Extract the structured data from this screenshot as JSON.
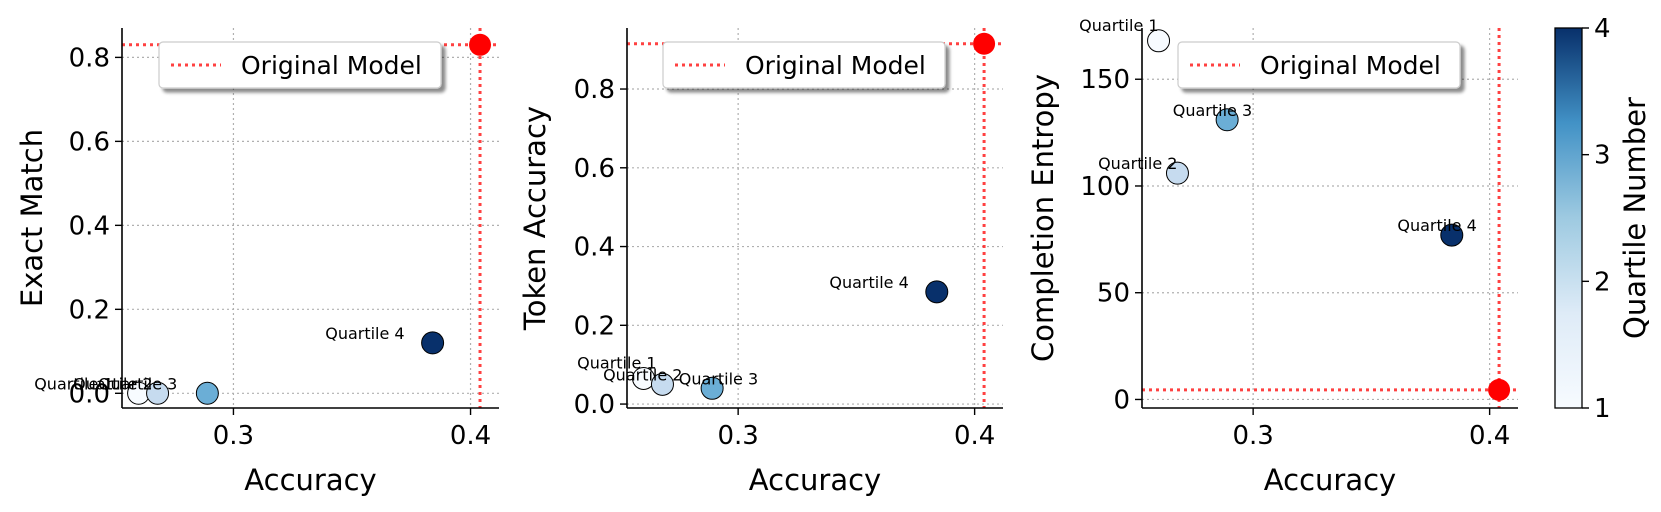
{
  "colors": {
    "quartile_scale": [
      "#f7fbff",
      "#c6dbef",
      "#6baed6",
      "#08306b"
    ],
    "reference": "#ff0000",
    "grid": "#b0b0b0"
  },
  "chart_data": [
    {
      "type": "scatter",
      "xlabel": "Accuracy",
      "ylabel": "Exact Match",
      "xlim": [
        0.253,
        0.412
      ],
      "ylim": [
        -0.035,
        0.87
      ],
      "xticks": [
        0.3,
        0.4
      ],
      "yticks": [
        0.0,
        0.2,
        0.4,
        0.6,
        0.8
      ],
      "xtick_labels": [
        "0.3",
        "0.4"
      ],
      "ytick_labels": [
        "0.0",
        "0.2",
        "0.4",
        "0.6",
        "0.8"
      ],
      "grid": true,
      "points": [
        {
          "label": "Quartile 1",
          "quartile": 1,
          "x": 0.26,
          "y": 0.0
        },
        {
          "label": "Quartile 2",
          "quartile": 2,
          "x": 0.268,
          "y": 0.0
        },
        {
          "label": "Quartile 3",
          "quartile": 3,
          "x": 0.289,
          "y": 0.0
        },
        {
          "label": "Quartile 4",
          "quartile": 4,
          "x": 0.384,
          "y": 0.12
        }
      ],
      "reference": {
        "label": "Original Model",
        "x": 0.404,
        "y": 0.83
      },
      "legend_position": "upper right"
    },
    {
      "type": "scatter",
      "xlabel": "Accuracy",
      "ylabel": "Token Accuracy",
      "xlim": [
        0.253,
        0.412
      ],
      "ylim": [
        -0.01,
        0.955
      ],
      "xticks": [
        0.3,
        0.4
      ],
      "yticks": [
        0.0,
        0.2,
        0.4,
        0.6,
        0.8
      ],
      "xtick_labels": [
        "0.3",
        "0.4"
      ],
      "ytick_labels": [
        "0.0",
        "0.2",
        "0.4",
        "0.6",
        "0.8"
      ],
      "grid": true,
      "points": [
        {
          "label": "Quartile 1",
          "quartile": 1,
          "x": 0.26,
          "y": 0.065
        },
        {
          "label": "Quartile 2",
          "quartile": 2,
          "x": 0.268,
          "y": 0.05
        },
        {
          "label": "Quartile 3",
          "quartile": 3,
          "x": 0.289,
          "y": 0.04
        },
        {
          "label": "Quartile 4",
          "quartile": 4,
          "x": 0.384,
          "y": 0.285
        }
      ],
      "reference": {
        "label": "Original Model",
        "x": 0.404,
        "y": 0.915
      },
      "legend_position": "upper right"
    },
    {
      "type": "scatter",
      "xlabel": "Accuracy",
      "ylabel": "Completion Entropy",
      "xlim": [
        0.253,
        0.412
      ],
      "ylim": [
        -4,
        174
      ],
      "xticks": [
        0.3,
        0.4
      ],
      "yticks": [
        0,
        50,
        100,
        150
      ],
      "xtick_labels": [
        "0.3",
        "0.4"
      ],
      "ytick_labels": [
        "0",
        "50",
        "100",
        "150"
      ],
      "grid": true,
      "points": [
        {
          "label": "Quartile 1",
          "quartile": 1,
          "x": 0.26,
          "y": 168
        },
        {
          "label": "Quartile 2",
          "quartile": 2,
          "x": 0.268,
          "y": 106
        },
        {
          "label": "Quartile 3",
          "quartile": 3,
          "x": 0.289,
          "y": 131
        },
        {
          "label": "Quartile 4",
          "quartile": 4,
          "x": 0.384,
          "y": 77
        }
      ],
      "reference": {
        "label": "Original Model",
        "x": 0.404,
        "y": 4.5
      },
      "legend_position": "upper right"
    }
  ],
  "colorbar": {
    "label": "Quartile Number",
    "min": 1,
    "max": 4,
    "ticks": [
      "1",
      "2",
      "3",
      "4"
    ]
  }
}
